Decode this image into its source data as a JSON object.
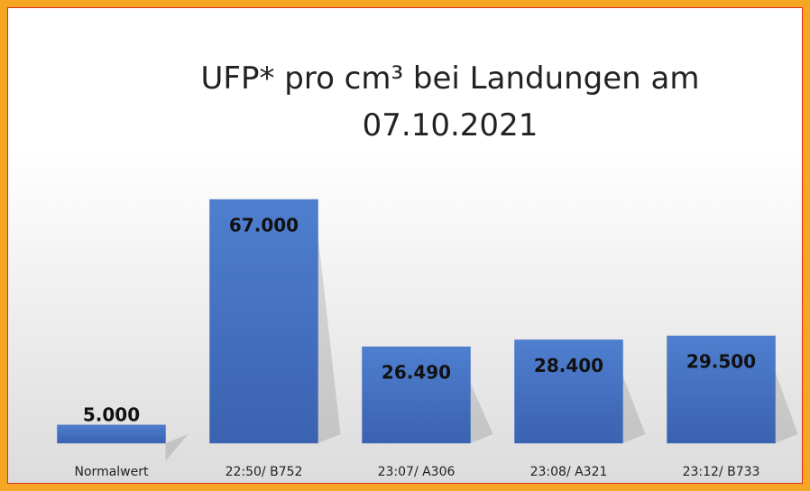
{
  "chart_data": {
    "type": "bar",
    "title": "UFP* pro cm³ bei Landungen am 07.10.2021",
    "categories": [
      "Normalwert",
      "22:50/ B752",
      "23:07/ A306",
      "23:08/ A321",
      "23:12/ B733"
    ],
    "values": [
      5000,
      67000,
      26490,
      28400,
      29500
    ],
    "value_labels": [
      "5.000",
      "67.000",
      "26.490",
      "28.400",
      "29.500"
    ],
    "color": "#4472c4"
  }
}
